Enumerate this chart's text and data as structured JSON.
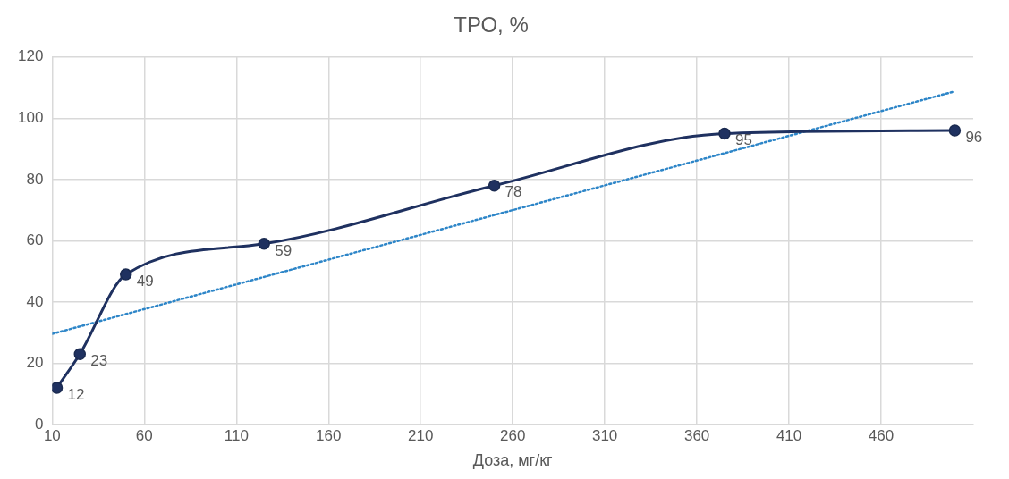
{
  "chart_data": {
    "type": "line",
    "title": "ТРО, %",
    "xlabel": "Доза, мг/кг",
    "x": [
      12.5,
      25,
      50,
      125,
      250,
      375,
      500
    ],
    "series": [
      {
        "color": "#1f3160",
        "marker": "circle",
        "line_style": "solid",
        "values": [
          12,
          23,
          49,
          59,
          78,
          95,
          96
        ],
        "value_labels": [
          "12",
          "23",
          "49",
          "59",
          "78",
          "95",
          "96"
        ]
      },
      {
        "color": "#2e86c8",
        "marker": "none",
        "line_style": "dotted",
        "x": [
          10,
          500
        ],
        "values": [
          29.6,
          108.8
        ]
      }
    ],
    "xlim": [
      10,
      510
    ],
    "xticks": [
      10,
      60,
      110,
      160,
      210,
      260,
      310,
      360,
      410,
      460
    ],
    "ylim": [
      0,
      120
    ],
    "yticks": [
      0,
      20,
      40,
      60,
      80,
      100,
      120
    ],
    "grid": true,
    "legend": false
  }
}
